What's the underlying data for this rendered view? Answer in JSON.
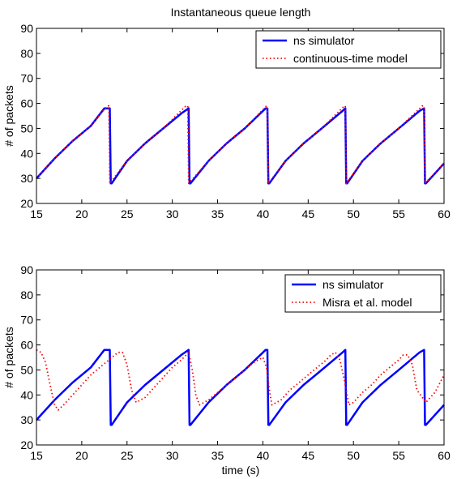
{
  "chart_data": [
    {
      "type": "line",
      "title": "Instantaneous queue length",
      "xlabel": "",
      "ylabel": "# of packets",
      "xlim": [
        15,
        60
      ],
      "ylim": [
        20,
        90
      ],
      "xticks": [
        15,
        20,
        25,
        30,
        35,
        40,
        45,
        50,
        55,
        60
      ],
      "yticks": [
        20,
        30,
        40,
        50,
        60,
        70,
        80,
        90
      ],
      "grid": false,
      "legend_position": "top-right",
      "series": [
        {
          "name": "ns simulator",
          "color": "#0000ff",
          "style": "solid",
          "x": [
            15,
            17,
            19,
            21,
            22.5,
            23.1,
            23.2,
            23.3,
            25,
            27,
            29,
            31,
            31.8,
            31.9,
            32.0,
            34,
            36,
            38,
            40.3,
            40.5,
            40.6,
            40.7,
            42.5,
            44.5,
            46.5,
            48.8,
            49.1,
            49.2,
            49.3,
            51,
            53,
            55,
            57.3,
            57.8,
            57.9,
            58.0,
            60
          ],
          "y": [
            30,
            38,
            45,
            51,
            58,
            58,
            28,
            28,
            37,
            44,
            50,
            56,
            58,
            28,
            28,
            37,
            44,
            50,
            58,
            58,
            28,
            28,
            37,
            44,
            50,
            57,
            58,
            28,
            28,
            37,
            44,
            50,
            57,
            58,
            28,
            28,
            36
          ]
        },
        {
          "name": "continuous-time model",
          "color": "#ff0000",
          "style": "dotted",
          "x": [
            15,
            17,
            19,
            21,
            22.8,
            23.0,
            23.1,
            25,
            27,
            29,
            31.5,
            31.7,
            31.8,
            34,
            36,
            38,
            40.4,
            40.5,
            40.6,
            42.5,
            44.5,
            46.5,
            49.0,
            49.1,
            49.2,
            51,
            53,
            55,
            57.6,
            57.8,
            57.9,
            60
          ],
          "y": [
            30,
            38,
            45,
            51,
            59,
            59,
            28,
            37,
            44,
            50,
            59,
            59,
            28,
            37,
            44,
            50,
            59,
            59,
            28,
            37,
            44,
            50,
            59,
            59,
            28,
            37,
            44,
            50,
            59,
            59,
            28,
            36
          ]
        }
      ]
    },
    {
      "type": "line",
      "title": "",
      "xlabel": "time (s)",
      "ylabel": "# of packets",
      "xlim": [
        15,
        60
      ],
      "ylim": [
        20,
        90
      ],
      "xticks": [
        15,
        20,
        25,
        30,
        35,
        40,
        45,
        50,
        55,
        60
      ],
      "yticks": [
        20,
        30,
        40,
        50,
        60,
        70,
        80,
        90
      ],
      "grid": false,
      "legend_position": "top-right",
      "series": [
        {
          "name": "ns simulator",
          "color": "#0000ff",
          "style": "solid",
          "x": [
            15,
            17,
            19,
            21,
            22.5,
            23.1,
            23.2,
            23.3,
            25,
            27,
            29,
            31,
            31.8,
            31.9,
            32.0,
            34,
            36,
            38,
            40.3,
            40.5,
            40.6,
            40.7,
            42.5,
            44.5,
            46.5,
            48.8,
            49.1,
            49.2,
            49.3,
            51,
            53,
            55,
            57.3,
            57.8,
            57.9,
            58.0,
            60
          ],
          "y": [
            30,
            38,
            45,
            51,
            58,
            58,
            28,
            28,
            37,
            44,
            50,
            56,
            58,
            28,
            28,
            37,
            44,
            50,
            58,
            58,
            28,
            28,
            37,
            44,
            50,
            57,
            58,
            28,
            28,
            37,
            44,
            50,
            57,
            58,
            28,
            28,
            36
          ]
        },
        {
          "name": "Misra et al. model",
          "color": "#ff0000",
          "style": "dotted",
          "x": [
            15,
            15.5,
            16,
            16.5,
            17,
            17.4,
            18,
            19,
            20,
            21,
            22,
            23,
            24,
            24.5,
            25,
            25.5,
            26,
            27,
            28,
            29,
            30,
            31,
            31.8,
            32.2,
            32.6,
            33,
            34,
            35,
            36,
            37,
            38,
            39,
            40,
            40.4,
            40.8,
            41,
            42,
            43,
            44,
            45,
            46,
            47,
            47.5,
            48,
            48.5,
            49,
            49.5,
            50,
            51,
            52,
            53,
            54,
            55,
            55.5,
            56,
            56.5,
            57,
            58,
            59,
            60
          ],
          "y": [
            58,
            57,
            53,
            44,
            36,
            34,
            36,
            40,
            44,
            48,
            51,
            54,
            57,
            57,
            52,
            42,
            37,
            39,
            43,
            47,
            51,
            54,
            57,
            50,
            40,
            36,
            38,
            41,
            44,
            47,
            50,
            53,
            55,
            51,
            40,
            36,
            38,
            42,
            45,
            48,
            51,
            54,
            56,
            57,
            54,
            46,
            36,
            37,
            41,
            44,
            48,
            51,
            54,
            56,
            56,
            52,
            42,
            37,
            41,
            48
          ]
        }
      ]
    }
  ]
}
